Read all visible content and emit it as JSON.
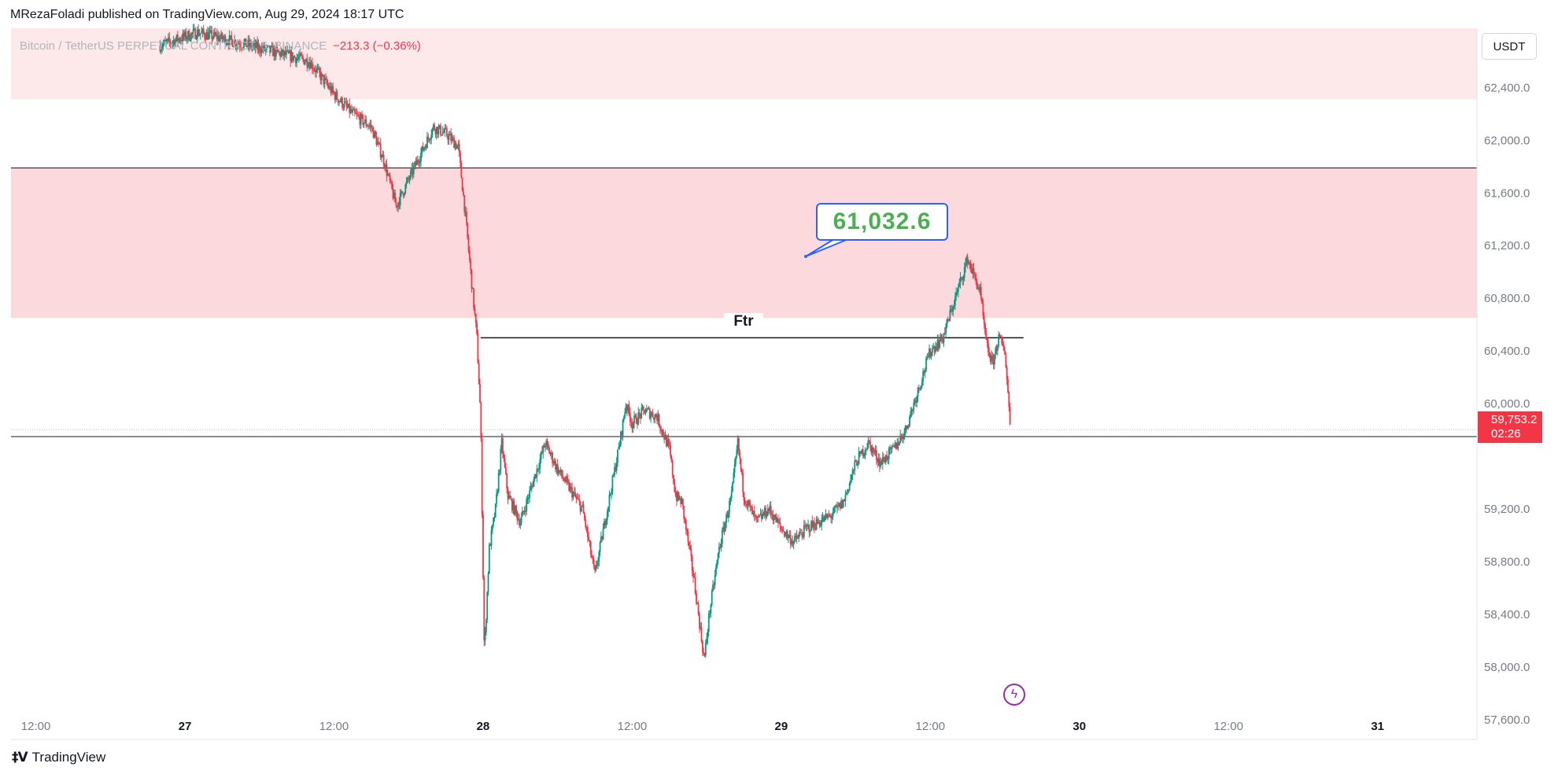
{
  "header": {
    "publisher_line": "MRezaFoladi published on TradingView.com, Aug 29, 2024 18:17 UTC"
  },
  "symbol": {
    "name": "Bitcoin / TetherUS PERPETUAL CONTRACT, 5, BINANCE",
    "change": "−213.3 (−0.36%)"
  },
  "currency_button": "USDT",
  "current_price": {
    "value": "59,753.2",
    "countdown": "02:26",
    "price": 59753.2
  },
  "annotations": {
    "callout_text": "61,032.6",
    "ftr_label": "Ftr"
  },
  "footer": {
    "brand": "TradingView",
    "logo_glyph": "‡V"
  },
  "colors": {
    "up": "#089981",
    "down": "#f23645",
    "zone": "#fcd9dc",
    "zone_light": "#fde8ea",
    "callout_border": "#2962ff",
    "callout_text": "#4caf50",
    "accent_purple": "#9c27b0"
  },
  "icons": {
    "bolt": "lightning-bolt-icon",
    "logo": "tradingview-logo-icon"
  },
  "chart_data": {
    "type": "candlestick",
    "timeframe": "5",
    "y_ticks": [
      62400,
      62000,
      61600,
      61200,
      60800,
      60400,
      60000,
      59200,
      58800,
      58400,
      58000,
      57600
    ],
    "y_tick_labels": [
      "62,400.0",
      "62,000.0",
      "61,600.0",
      "61,200.0",
      "60,800.0",
      "60,400.0",
      "60,000.0",
      "59,200.0",
      "58,800.0",
      "58,400.0",
      "58,000.0",
      "57,600.0"
    ],
    "ylim": [
      57450,
      62850
    ],
    "x_ticks": [
      "12:00",
      "27",
      "12:00",
      "28",
      "12:00",
      "29",
      "12:00",
      "30",
      "12:00",
      "31"
    ],
    "x_tick_hours": [
      -12,
      0,
      12,
      24,
      36,
      48,
      60,
      72,
      84,
      96
    ],
    "x_range_hours": [
      -14,
      104
    ],
    "price_path": [
      [
        -2,
        62720
      ],
      [
        1,
        62820
      ],
      [
        6,
        62700
      ],
      [
        10,
        62600
      ],
      [
        12,
        62350
      ],
      [
        13.5,
        62200
      ],
      [
        15,
        62100
      ],
      [
        16,
        61850
      ],
      [
        17,
        61500
      ],
      [
        18,
        61700
      ],
      [
        19,
        61900
      ],
      [
        20,
        62100
      ],
      [
        21,
        62050
      ],
      [
        22,
        61950
      ],
      [
        22.5,
        61500
      ],
      [
        23,
        61000
      ],
      [
        23.5,
        60500
      ],
      [
        23.8,
        59900
      ],
      [
        24.1,
        58100
      ],
      [
        24.5,
        58900
      ],
      [
        25,
        59200
      ],
      [
        25.5,
        59700
      ],
      [
        26,
        59300
      ],
      [
        27,
        59100
      ],
      [
        28,
        59400
      ],
      [
        29,
        59700
      ],
      [
        30,
        59500
      ],
      [
        31,
        59350
      ],
      [
        32,
        59200
      ],
      [
        33,
        58700
      ],
      [
        34,
        59200
      ],
      [
        35,
        59700
      ],
      [
        35.5,
        60000
      ],
      [
        36,
        59850
      ],
      [
        37,
        59950
      ],
      [
        38,
        59900
      ],
      [
        39,
        59650
      ],
      [
        39.5,
        59300
      ],
      [
        40,
        59250
      ],
      [
        41,
        58650
      ],
      [
        41.8,
        58050
      ],
      [
        42.2,
        58400
      ],
      [
        43,
        58900
      ],
      [
        44,
        59300
      ],
      [
        44.5,
        59700
      ],
      [
        45,
        59300
      ],
      [
        46,
        59100
      ],
      [
        47,
        59200
      ],
      [
        48,
        59050
      ],
      [
        49,
        58950
      ],
      [
        50,
        59050
      ],
      [
        51,
        59100
      ],
      [
        52,
        59150
      ],
      [
        53,
        59250
      ],
      [
        54,
        59550
      ],
      [
        55,
        59700
      ],
      [
        56,
        59550
      ],
      [
        57,
        59650
      ],
      [
        58,
        59800
      ],
      [
        59,
        60100
      ],
      [
        60,
        60400
      ],
      [
        61,
        60500
      ],
      [
        62,
        60800
      ],
      [
        63,
        61100
      ],
      [
        64,
        60850
      ],
      [
        64.5,
        60450
      ],
      [
        65,
        60300
      ],
      [
        65.5,
        60500
      ],
      [
        66,
        60400
      ],
      [
        66.5,
        59760
      ]
    ],
    "horizontal_lines": [
      61790,
      59750
    ],
    "zones": [
      {
        "from": 62310,
        "to": 62850
      },
      {
        "from": 60650,
        "to": 61790
      }
    ],
    "ftr_line": {
      "price": 60500,
      "x_from": 23.8,
      "x_to": 67.5
    }
  }
}
